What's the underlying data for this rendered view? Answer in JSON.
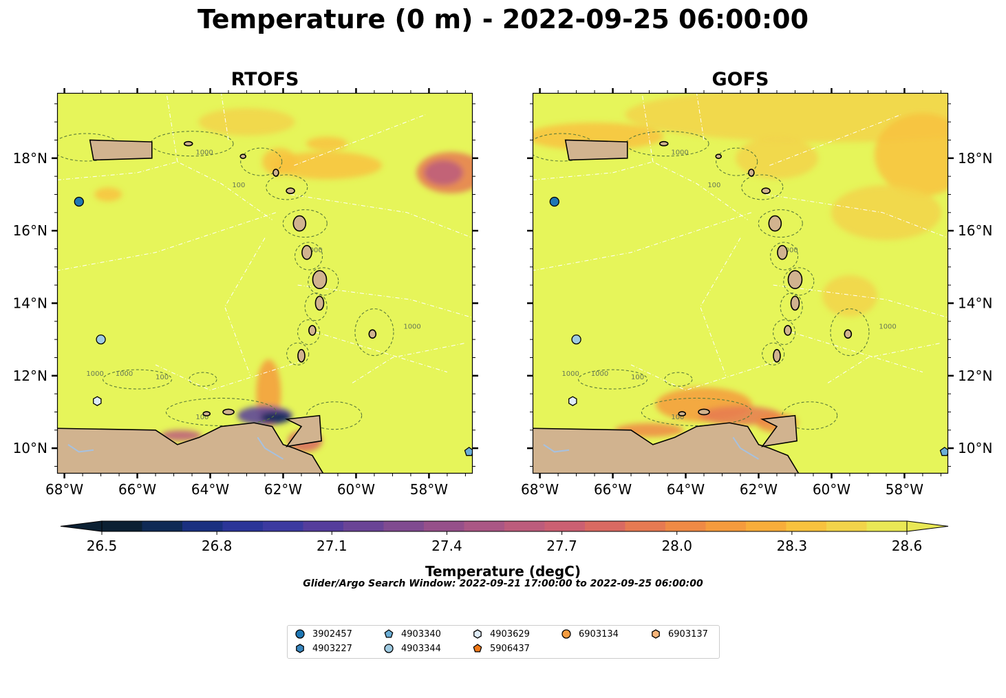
{
  "title": "Temperature (0 m) - 2022-09-25 06:00:00",
  "panels": [
    {
      "title": "RTOFS"
    },
    {
      "title": "GOFS"
    }
  ],
  "axes": {
    "lon_ticks": [
      "68°W",
      "66°W",
      "64°W",
      "62°W",
      "60°W",
      "58°W"
    ],
    "lat_ticks": [
      "10°N",
      "12°N",
      "14°N",
      "16°N",
      "18°N"
    ],
    "lon_range": [
      -68.2,
      -56.8
    ],
    "lat_range": [
      9.3,
      19.8
    ]
  },
  "contour_labels": [
    "1000",
    "100",
    "1000",
    "1000",
    "100",
    "100",
    "1000",
    "1000"
  ],
  "colorbar": {
    "label": "Temperature (degC)",
    "ticks": [
      "26.5",
      "26.8",
      "27.1",
      "27.4",
      "27.7",
      "28.0",
      "28.3",
      "28.6"
    ],
    "range": [
      26.5,
      28.6
    ],
    "colors": [
      "#0b2033",
      "#0f2a55",
      "#1a3080",
      "#2b3598",
      "#3c3aa0",
      "#553d9c",
      "#6a4496",
      "#804b90",
      "#96508a",
      "#aa5785",
      "#bc5c7c",
      "#cb6072",
      "#d96a62",
      "#e67a52",
      "#ef8a45",
      "#f59b3d",
      "#f8ad3a",
      "#f8c23e",
      "#f2d44a",
      "#e9e855"
    ]
  },
  "search_window": "Glider/Argo Search Window: 2022-09-21 17:00:00 to 2022-09-25 06:00:00",
  "floats": [
    {
      "id": "3902457",
      "marker": "circle",
      "color": "#1f77b4",
      "lon": -67.6,
      "lat": 16.8
    },
    {
      "id": "4903227",
      "marker": "hexagon",
      "color": "#3a87bf",
      "lon": null,
      "lat": null
    },
    {
      "id": "4903340",
      "marker": "pentagon",
      "color": "#6baed6",
      "lon": -56.9,
      "lat": 9.9
    },
    {
      "id": "4903344",
      "marker": "circle",
      "color": "#9ecae1",
      "lon": -67.0,
      "lat": 13.0
    },
    {
      "id": "4903629",
      "marker": "hexagon",
      "color": "#deebf7",
      "lon": -67.1,
      "lat": 11.3
    },
    {
      "id": "5906437",
      "marker": "pentagon",
      "color": "#f07818",
      "lon": null,
      "lat": null
    },
    {
      "id": "6903134",
      "marker": "circle",
      "color": "#f59c40",
      "lon": null,
      "lat": null
    },
    {
      "id": "6903137",
      "marker": "hexagon",
      "color": "#f9b67a",
      "lon": null,
      "lat": null
    }
  ],
  "colors": {
    "ocean": "#e6f55a",
    "land": "#d1b38f",
    "coast": "#000000",
    "rivers": "#a6c1e0"
  }
}
